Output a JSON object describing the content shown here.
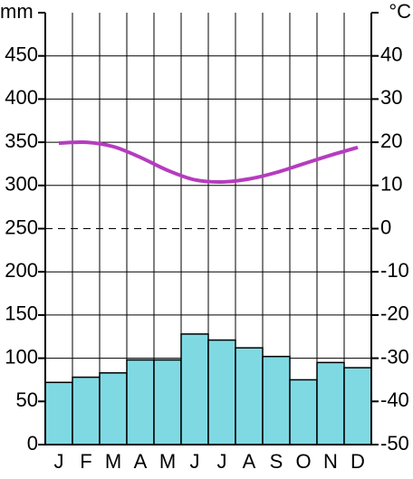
{
  "chart_data": {
    "type": "climograph",
    "y_label": "mm",
    "y2_label": "°C",
    "categories": [
      "J",
      "F",
      "M",
      "A",
      "M",
      "J",
      "J",
      "A",
      "S",
      "O",
      "N",
      "D"
    ],
    "series": [
      {
        "name": "precipitation",
        "type": "bar",
        "color": "#7fd9e3",
        "values": [
          72,
          78,
          83,
          98,
          98,
          128,
          121,
          112,
          102,
          75,
          95,
          89
        ]
      },
      {
        "name": "temperature",
        "type": "line",
        "axis": "y2",
        "color": "#b63cbf",
        "values": [
          19.8,
          20.0,
          19.0,
          16.5,
          13.5,
          11.3,
          10.8,
          11.5,
          13.0,
          15.0,
          17.0,
          18.8
        ]
      }
    ],
    "ylim": [
      0,
      500
    ],
    "yticks": [
      0,
      50,
      100,
      150,
      200,
      250,
      300,
      350,
      400,
      450
    ],
    "y2lim": [
      -50,
      50
    ],
    "y2ticks": [
      -50,
      -40,
      -30,
      -20,
      -10,
      0,
      10,
      20,
      30,
      40
    ],
    "grid": true
  }
}
